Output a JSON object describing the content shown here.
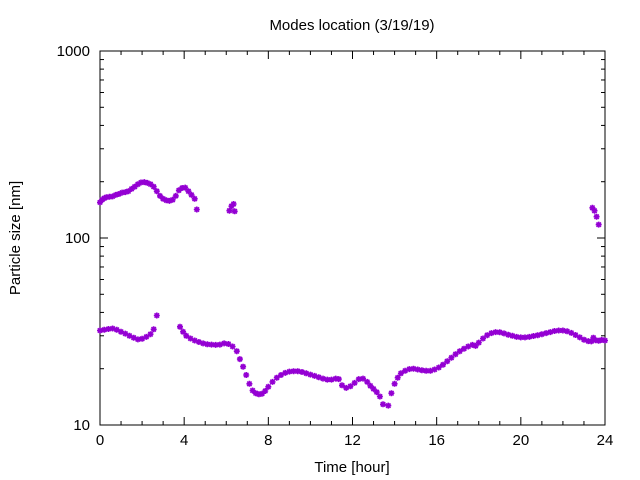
{
  "chart_data": {
    "type": "scatter",
    "title": "Modes location (3/19/19)",
    "xlabel": "Time [hour]",
    "ylabel": "Particle size [nm]",
    "xlim": [
      0,
      24
    ],
    "ylim": [
      10,
      1000
    ],
    "yscale": "log",
    "grid": false,
    "legend": "none",
    "marker_color": "#9400D3",
    "x_ticks": [
      "0",
      "4",
      "8",
      "12",
      "16",
      "20",
      "24"
    ],
    "y_ticks": [
      "10",
      "100",
      "1000"
    ],
    "series": [
      {
        "points": [
          [
            0.0,
            155
          ],
          [
            0.1,
            160
          ],
          [
            0.2,
            163
          ],
          [
            0.3,
            165
          ],
          [
            0.45,
            166
          ],
          [
            0.6,
            167
          ],
          [
            0.75,
            170
          ],
          [
            0.9,
            172
          ],
          [
            1.05,
            175
          ],
          [
            1.2,
            176
          ],
          [
            1.35,
            178
          ],
          [
            1.5,
            183
          ],
          [
            1.65,
            188
          ],
          [
            1.8,
            194
          ],
          [
            1.95,
            198
          ],
          [
            2.1,
            199
          ],
          [
            2.25,
            197
          ],
          [
            2.4,
            194
          ],
          [
            2.55,
            188
          ],
          [
            2.7,
            178
          ],
          [
            2.85,
            168
          ],
          [
            3.0,
            162
          ],
          [
            3.15,
            159
          ],
          [
            3.3,
            158
          ],
          [
            3.45,
            160
          ],
          [
            3.6,
            168
          ],
          [
            3.75,
            180
          ],
          [
            3.9,
            185
          ],
          [
            4.05,
            186
          ],
          [
            4.2,
            178
          ],
          [
            4.35,
            170
          ],
          [
            4.5,
            162
          ],
          [
            4.6,
            142
          ],
          [
            6.15,
            140
          ],
          [
            6.25,
            148
          ],
          [
            6.35,
            152
          ],
          [
            6.4,
            139
          ],
          [
            23.4,
            145
          ],
          [
            23.5,
            140
          ],
          [
            23.6,
            130
          ],
          [
            23.7,
            118
          ]
        ]
      },
      {
        "points": [
          [
            0.0,
            32
          ],
          [
            0.2,
            32.3
          ],
          [
            0.4,
            32.6
          ],
          [
            0.6,
            32.8
          ],
          [
            0.8,
            32.3
          ],
          [
            1.0,
            31.5
          ],
          [
            1.2,
            30.8
          ],
          [
            1.4,
            30.0
          ],
          [
            1.6,
            29.3
          ],
          [
            1.8,
            28.7
          ],
          [
            2.0,
            28.9
          ],
          [
            2.2,
            29.6
          ],
          [
            2.4,
            30.6
          ],
          [
            2.55,
            32.5
          ],
          [
            2.7,
            38.5
          ],
          [
            3.8,
            33.5
          ],
          [
            3.95,
            31.5
          ],
          [
            4.1,
            30.0
          ],
          [
            4.3,
            29.0
          ],
          [
            4.5,
            28.3
          ],
          [
            4.7,
            27.8
          ],
          [
            4.9,
            27.3
          ],
          [
            5.1,
            27.0
          ],
          [
            5.3,
            26.9
          ],
          [
            5.5,
            26.8
          ],
          [
            5.7,
            26.9
          ],
          [
            5.9,
            27.3
          ],
          [
            6.1,
            27.1
          ],
          [
            6.3,
            26.3
          ],
          [
            6.5,
            24.8
          ],
          [
            6.65,
            22.5
          ],
          [
            6.8,
            20.5
          ],
          [
            6.95,
            18.5
          ],
          [
            7.1,
            16.6
          ],
          [
            7.25,
            15.3
          ],
          [
            7.4,
            14.8
          ],
          [
            7.55,
            14.6
          ],
          [
            7.7,
            14.7
          ],
          [
            7.85,
            15.2
          ],
          [
            8.0,
            16.0
          ],
          [
            8.2,
            17.0
          ],
          [
            8.4,
            17.9
          ],
          [
            8.6,
            18.5
          ],
          [
            8.8,
            19.0
          ],
          [
            9.0,
            19.3
          ],
          [
            9.2,
            19.4
          ],
          [
            9.4,
            19.4
          ],
          [
            9.6,
            19.2
          ],
          [
            9.8,
            18.9
          ],
          [
            10.0,
            18.6
          ],
          [
            10.2,
            18.3
          ],
          [
            10.4,
            18.0
          ],
          [
            10.6,
            17.7
          ],
          [
            10.8,
            17.5
          ],
          [
            11.0,
            17.5
          ],
          [
            11.2,
            17.7
          ],
          [
            11.35,
            17.6
          ],
          [
            11.5,
            16.3
          ],
          [
            11.7,
            15.8
          ],
          [
            11.9,
            16.1
          ],
          [
            12.1,
            16.8
          ],
          [
            12.3,
            17.6
          ],
          [
            12.5,
            17.7
          ],
          [
            12.7,
            17.0
          ],
          [
            12.85,
            16.2
          ],
          [
            13.0,
            15.6
          ],
          [
            13.15,
            15.0
          ],
          [
            13.3,
            14.2
          ],
          [
            13.45,
            12.9
          ],
          [
            13.7,
            12.7
          ],
          [
            13.85,
            14.8
          ],
          [
            14.0,
            16.6
          ],
          [
            14.15,
            17.9
          ],
          [
            14.3,
            18.9
          ],
          [
            14.5,
            19.5
          ],
          [
            14.7,
            19.9
          ],
          [
            14.9,
            20.0
          ],
          [
            15.1,
            19.8
          ],
          [
            15.3,
            19.6
          ],
          [
            15.5,
            19.5
          ],
          [
            15.7,
            19.5
          ],
          [
            15.9,
            19.8
          ],
          [
            16.1,
            20.3
          ],
          [
            16.3,
            21.0
          ],
          [
            16.5,
            21.9
          ],
          [
            16.7,
            22.9
          ],
          [
            16.9,
            23.9
          ],
          [
            17.1,
            24.8
          ],
          [
            17.3,
            25.6
          ],
          [
            17.5,
            26.3
          ],
          [
            17.7,
            26.8
          ],
          [
            17.85,
            26.5
          ],
          [
            18.0,
            27.6
          ],
          [
            18.2,
            29.0
          ],
          [
            18.4,
            30.2
          ],
          [
            18.6,
            31.0
          ],
          [
            18.8,
            31.4
          ],
          [
            19.0,
            31.3
          ],
          [
            19.2,
            30.9
          ],
          [
            19.4,
            30.4
          ],
          [
            19.6,
            30.0
          ],
          [
            19.8,
            29.6
          ],
          [
            20.0,
            29.4
          ],
          [
            20.2,
            29.4
          ],
          [
            20.4,
            29.6
          ],
          [
            20.6,
            29.9
          ],
          [
            20.8,
            30.2
          ],
          [
            21.0,
            30.6
          ],
          [
            21.2,
            31.0
          ],
          [
            21.4,
            31.4
          ],
          [
            21.6,
            31.8
          ],
          [
            21.8,
            32.0
          ],
          [
            22.0,
            32.0
          ],
          [
            22.2,
            31.7
          ],
          [
            22.4,
            31.1
          ],
          [
            22.6,
            30.3
          ],
          [
            22.8,
            29.4
          ],
          [
            23.0,
            28.6
          ],
          [
            23.2,
            28.1
          ],
          [
            23.35,
            28.0
          ],
          [
            23.45,
            29.3
          ],
          [
            23.55,
            28.4
          ],
          [
            23.7,
            28.2
          ],
          [
            23.85,
            28.5
          ],
          [
            24.0,
            28.3
          ]
        ]
      }
    ]
  }
}
